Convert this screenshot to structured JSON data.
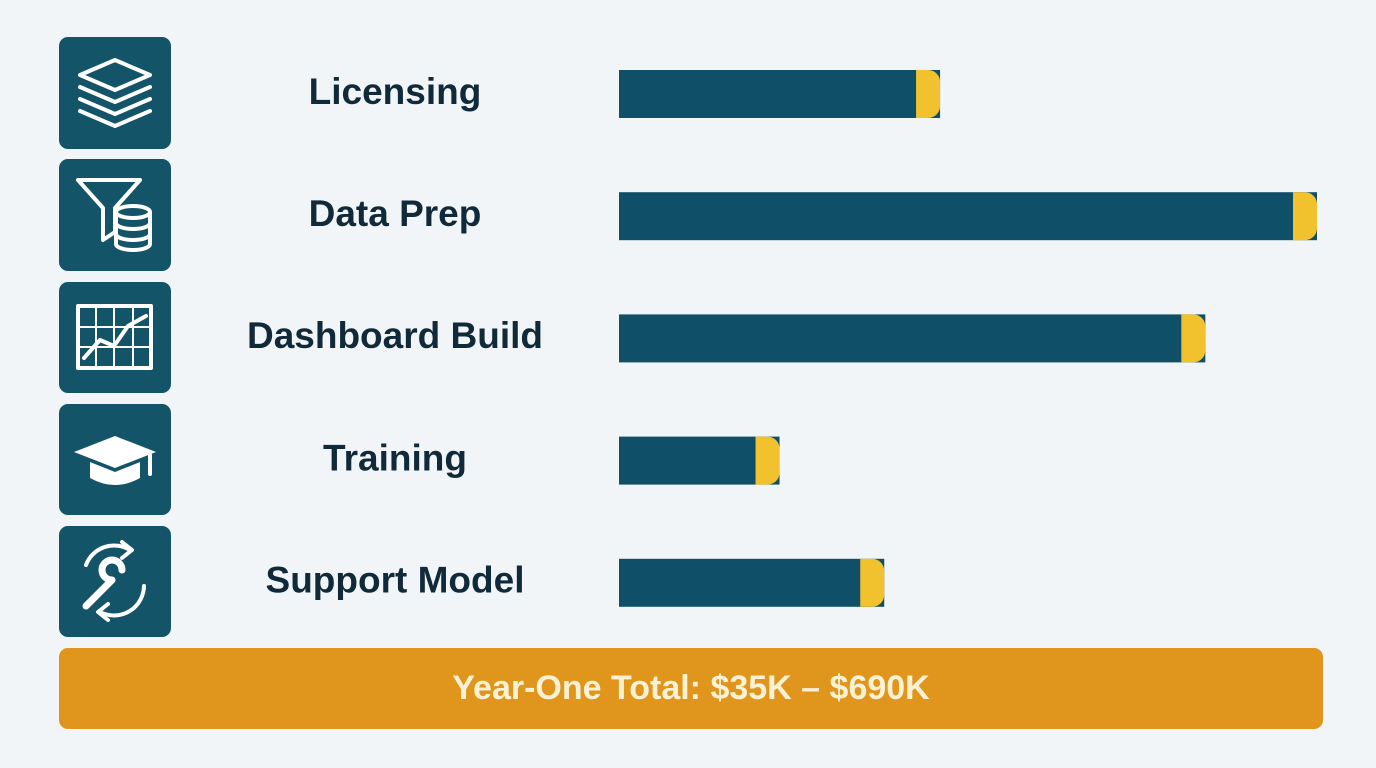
{
  "chart_data": {
    "type": "bar",
    "categories": [
      "Licensing",
      "Data Prep",
      "Dashboard Build",
      "Training",
      "Support Model"
    ],
    "values": [
      46,
      100,
      84,
      23,
      38
    ],
    "color": "#0f5068",
    "cap_color": "#f2c12e",
    "annotation": "Year-One Total: $35K – $690K"
  }
}
